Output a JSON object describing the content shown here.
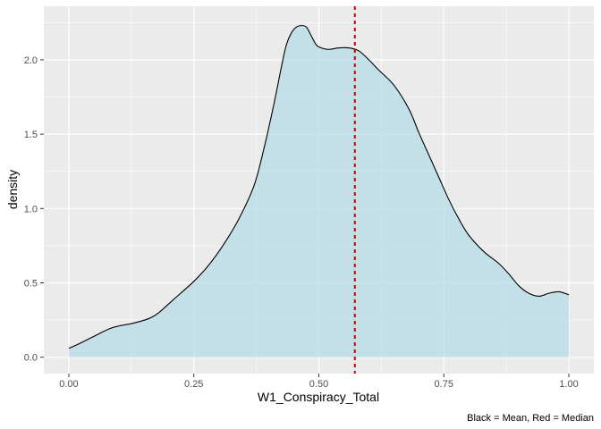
{
  "chart_data": {
    "type": "area",
    "xlabel": "W1_Conspiracy_Total",
    "ylabel": "density",
    "caption": "Black = Mean, Red = Median",
    "xlim": [
      -0.05,
      1.05
    ],
    "ylim": [
      -0.11,
      2.36
    ],
    "x_ticks": [
      0,
      0.25,
      0.5,
      0.75,
      1
    ],
    "x_tick_labels": [
      "0.00",
      "0.25",
      "0.50",
      "0.75",
      "1.00"
    ],
    "y_ticks": [
      0,
      0.5,
      1,
      1.5,
      2
    ],
    "y_tick_labels": [
      "0.0",
      "0.5",
      "1.0",
      "1.5",
      "2.0"
    ],
    "grid": true,
    "colors": {
      "panel": "#ebebeb",
      "grid": "#ffffff",
      "fill": "#add8e6",
      "line": "#000000",
      "median_line": "#cc0000",
      "mean_line": "#000000"
    },
    "mean": 0.572,
    "median": 0.572,
    "series": [
      {
        "x": [
          0.0,
          0.02,
          0.05,
          0.08,
          0.1,
          0.13,
          0.16,
          0.18,
          0.21,
          0.25,
          0.28,
          0.31,
          0.34,
          0.37,
          0.39,
          0.41,
          0.425,
          0.435,
          0.445,
          0.455,
          0.465,
          0.475,
          0.485,
          0.495,
          0.505,
          0.52,
          0.54,
          0.56,
          0.58,
          0.6,
          0.62,
          0.65,
          0.68,
          0.7,
          0.72,
          0.74,
          0.76,
          0.78,
          0.8,
          0.83,
          0.86,
          0.88,
          0.9,
          0.92,
          0.94,
          0.96,
          0.98,
          1.0
        ],
        "y": [
          0.06,
          0.09,
          0.14,
          0.19,
          0.21,
          0.23,
          0.26,
          0.3,
          0.39,
          0.51,
          0.62,
          0.76,
          0.93,
          1.15,
          1.4,
          1.7,
          1.95,
          2.1,
          2.18,
          2.22,
          2.23,
          2.22,
          2.16,
          2.1,
          2.08,
          2.07,
          2.08,
          2.08,
          2.06,
          2.0,
          1.93,
          1.83,
          1.67,
          1.51,
          1.36,
          1.21,
          1.06,
          0.93,
          0.82,
          0.71,
          0.63,
          0.56,
          0.48,
          0.43,
          0.41,
          0.43,
          0.44,
          0.42
        ]
      }
    ]
  }
}
